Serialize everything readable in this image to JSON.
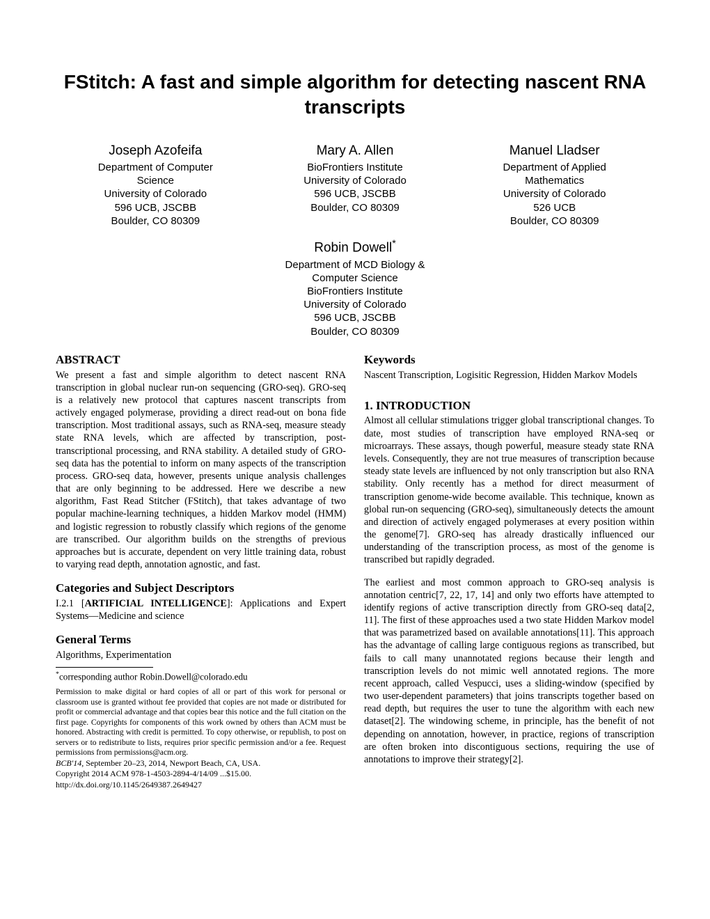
{
  "title": "FStitch: A fast and simple algorithm for detecting nascent RNA transcripts",
  "authors": [
    {
      "name": "Joseph Azofeifa",
      "affil": "Department of Computer\nScience\nUniversity of Colorado\n596 UCB, JSCBB\nBoulder, CO 80309"
    },
    {
      "name": "Mary A. Allen",
      "affil": "BioFrontiers Institute\nUniversity of Colorado\n596 UCB, JSCBB\nBoulder, CO 80309"
    },
    {
      "name": "Manuel Lladser",
      "affil": "Department of Applied\nMathematics\nUniversity of Colorado\n526 UCB\nBoulder, CO 80309"
    }
  ],
  "author4": {
    "name": "Robin Dowell",
    "sup": "*",
    "affil": "Department of MCD Biology &\nComputer Science\nBioFrontiers Institute\nUniversity of Colorado\n596 UCB, JSCBB\nBoulder, CO 80309"
  },
  "abstract_head": "ABSTRACT",
  "abstract_text": "We present a fast and simple algorithm to detect nascent RNA transcription in global nuclear run-on sequencing (GRO-seq). GRO-seq is a relatively new protocol that captures nascent transcripts from actively engaged polymerase, providing a direct read-out on bona fide transcription. Most traditional assays, such as RNA-seq, measure steady state RNA levels, which are affected by transcription, post-transcriptional processing, and RNA stability. A detailed study of GRO-seq data has the potential to inform on many aspects of the transcription process. GRO-seq data, however, presents unique analysis challenges that are only beginning to be addressed. Here we describe a new algorithm, Fast Read Stitcher (FStitch), that takes advantage of two popular machine-learning techniques, a hidden Markov model (HMM) and logistic regression to robustly classify which regions of the genome are transcribed. Our algorithm builds on the strengths of previous approaches but is accurate, dependent on very little training data, robust to varying read depth, annotation agnostic, and fast.",
  "cat_head": "Categories and Subject Descriptors",
  "cat_text_pre": "I.2.1 [",
  "cat_text_bold": "ARTIFICIAL INTELLIGENCE",
  "cat_text_post": "]: Applications and Expert Systems—Medicine and science",
  "gen_head": "General Terms",
  "gen_text": "Algorithms, Experimentation",
  "footnote_star": "*",
  "footnote_text": "corresponding author Robin.Dowell@colorado.edu",
  "permission_text": "Permission to make digital or hard copies of all or part of this work for personal or classroom use is granted without fee provided that copies are not made or distributed for profit or commercial advantage and that copies bear this notice and the full citation on the first page. Copyrights for components of this work owned by others than ACM must be honored. Abstracting with credit is permitted. To copy otherwise, or republish, to post on servers or to redistribute to lists, requires prior specific permission and/or a fee. Request permissions from permissions@acm.org.",
  "conf_line1_italic": "BCB'14,",
  "conf_line1_rest": " September 20–23, 2014, Newport Beach, CA, USA.",
  "conf_line2": "Copyright 2014 ACM 978-1-4503-2894-4/14/09 ...$15.00.",
  "conf_line3": "http://dx.doi.org/10.1145/2649387.2649427",
  "keywords_head": "Keywords",
  "keywords_text": "Nascent Transcription, Logisitic Regression, Hidden Markov Models",
  "intro_head": "1.   INTRODUCTION",
  "intro_p1": "Almost all cellular stimulations trigger global transcriptional changes. To date, most studies of transcription have employed RNA-seq or microarrays. These assays, though powerful, measure steady state RNA levels. Consequently, they are not true measures of transcription because steady state levels are influenced by not only transcription but also RNA stability. Only recently has a method for direct measurment of transcription genome-wide become available. This technique, known as global run-on sequencing (GRO-seq), simultaneously detects the amount and direction of actively engaged polymerases at every position within the genome[7]. GRO-seq has already drastically influenced our understanding of the transcription process, as most of the genome is transcribed but rapidly degraded.",
  "intro_p2": "The earliest and most common approach to GRO-seq analysis is annotation centric[7, 22, 17, 14] and only two efforts have attempted to identify regions of active transcription directly from GRO-seq data[2, 11]. The first of these approaches used a two state Hidden Markov model that was parametrized based on available annotations[11]. This approach has the advantage of calling large contiguous regions as transcribed, but fails to call many unannotated regions because their length and transcription levels do not mimic well annotated regions. The more recent approach, called Vespucci, uses a sliding-window (specified by two user-dependent parameters) that joins transcripts together based on read depth, but requires the user to tune the algorithm with each new dataset[2]. The windowing scheme, in principle, has the benefit of not depending on annotation, however, in practice, regions of transcription are often broken into discontiguous sections, requiring the use of annotations to improve their strategy[2]."
}
